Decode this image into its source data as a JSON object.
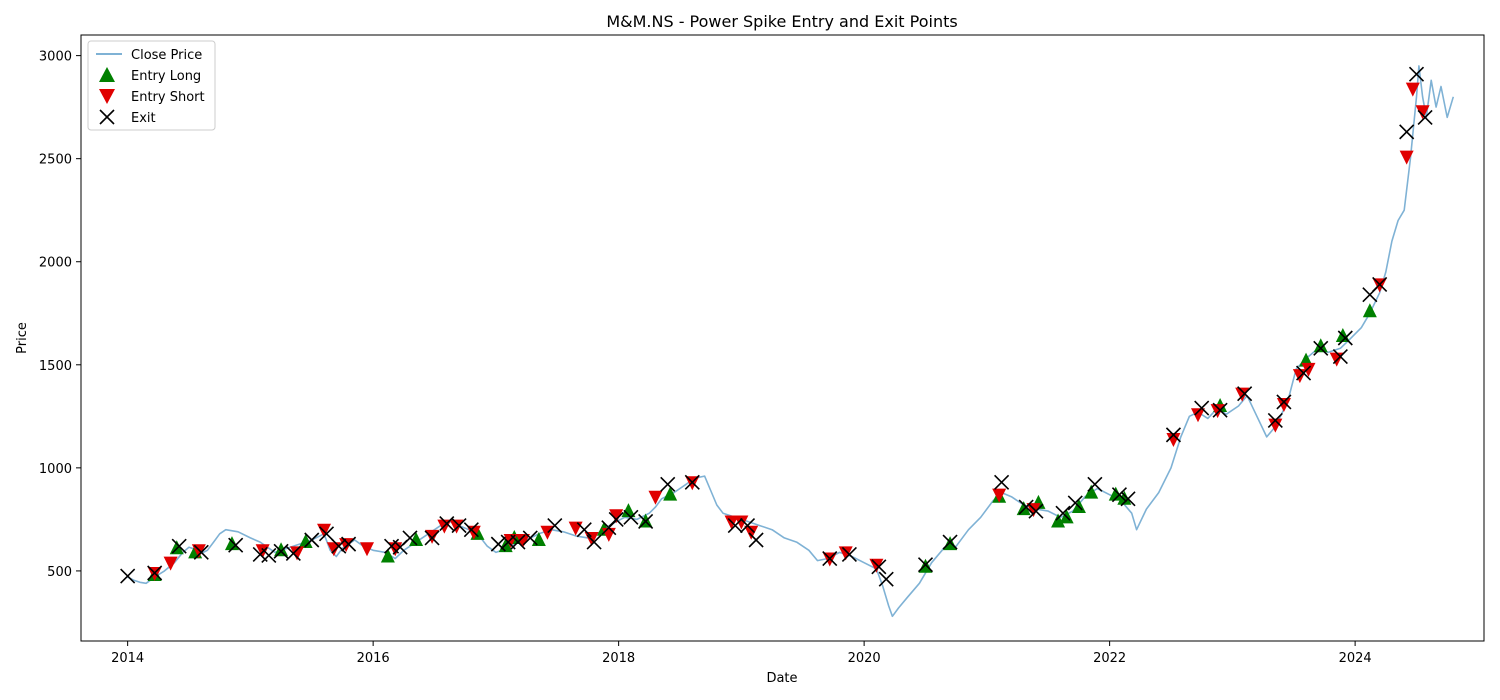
{
  "chart_data": {
    "type": "line",
    "title": "M&M.NS - Power Spike Entry and Exit Points",
    "xlabel": "Date",
    "ylabel": "Price",
    "xlim": [
      2013.62,
      2025.05
    ],
    "ylim": [
      160,
      3100
    ],
    "x_ticks": [
      2014,
      2016,
      2018,
      2020,
      2022,
      2024
    ],
    "y_ticks": [
      500,
      1000,
      1500,
      2000,
      2500,
      3000
    ],
    "legend_position": "top-left",
    "grid": false,
    "colors": {
      "close_price": "#7fb2d5",
      "entry_long": "#008000",
      "entry_short": "#e00000",
      "exit": "#000000"
    },
    "legend": [
      {
        "key": "close",
        "label": "Close Price"
      },
      {
        "key": "long",
        "label": "Entry Long"
      },
      {
        "key": "short",
        "label": "Entry Short"
      },
      {
        "key": "exit",
        "label": "Exit"
      }
    ],
    "series": [
      {
        "name": "Close Price",
        "points": [
          [
            2014.0,
            470
          ],
          [
            2014.05,
            455
          ],
          [
            2014.1,
            445
          ],
          [
            2014.15,
            440
          ],
          [
            2014.22,
            470
          ],
          [
            2014.3,
            500
          ],
          [
            2014.38,
            540
          ],
          [
            2014.45,
            590
          ],
          [
            2014.5,
            615
          ],
          [
            2014.55,
            605
          ],
          [
            2014.6,
            585
          ],
          [
            2014.65,
            600
          ],
          [
            2014.7,
            640
          ],
          [
            2014.75,
            680
          ],
          [
            2014.8,
            700
          ],
          [
            2014.9,
            690
          ],
          [
            2015.0,
            660
          ],
          [
            2015.08,
            640
          ],
          [
            2015.15,
            610
          ],
          [
            2015.2,
            590
          ],
          [
            2015.3,
            610
          ],
          [
            2015.4,
            630
          ],
          [
            2015.5,
            650
          ],
          [
            2015.6,
            680
          ],
          [
            2015.65,
            600
          ],
          [
            2015.7,
            570
          ],
          [
            2015.75,
            610
          ],
          [
            2015.85,
            650
          ],
          [
            2015.92,
            620
          ],
          [
            2016.0,
            600
          ],
          [
            2016.1,
            590
          ],
          [
            2016.18,
            560
          ],
          [
            2016.25,
            600
          ],
          [
            2016.35,
            640
          ],
          [
            2016.45,
            680
          ],
          [
            2016.55,
            720
          ],
          [
            2016.62,
            740
          ],
          [
            2016.7,
            720
          ],
          [
            2016.78,
            700
          ],
          [
            2016.85,
            680
          ],
          [
            2016.93,
            620
          ],
          [
            2017.0,
            590
          ],
          [
            2017.05,
            600
          ],
          [
            2017.15,
            630
          ],
          [
            2017.25,
            650
          ],
          [
            2017.35,
            680
          ],
          [
            2017.45,
            700
          ],
          [
            2017.55,
            690
          ],
          [
            2017.65,
            670
          ],
          [
            2017.75,
            660
          ],
          [
            2017.85,
            690
          ],
          [
            2017.95,
            730
          ],
          [
            2018.05,
            760
          ],
          [
            2018.15,
            750
          ],
          [
            2018.25,
            780
          ],
          [
            2018.3,
            810
          ],
          [
            2018.35,
            850
          ],
          [
            2018.45,
            880
          ],
          [
            2018.55,
            920
          ],
          [
            2018.62,
            950
          ],
          [
            2018.7,
            960
          ],
          [
            2018.75,
            890
          ],
          [
            2018.8,
            820
          ],
          [
            2018.85,
            780
          ],
          [
            2018.95,
            760
          ],
          [
            2019.05,
            740
          ],
          [
            2019.15,
            720
          ],
          [
            2019.25,
            700
          ],
          [
            2019.35,
            660
          ],
          [
            2019.45,
            640
          ],
          [
            2019.55,
            600
          ],
          [
            2019.62,
            550
          ],
          [
            2019.7,
            560
          ],
          [
            2019.8,
            590
          ],
          [
            2019.9,
            570
          ],
          [
            2020.0,
            540
          ],
          [
            2020.1,
            510
          ],
          [
            2020.15,
            430
          ],
          [
            2020.2,
            330
          ],
          [
            2020.23,
            280
          ],
          [
            2020.28,
            320
          ],
          [
            2020.35,
            370
          ],
          [
            2020.45,
            440
          ],
          [
            2020.55,
            540
          ],
          [
            2020.65,
            610
          ],
          [
            2020.75,
            620
          ],
          [
            2020.85,
            700
          ],
          [
            2020.95,
            760
          ],
          [
            2021.05,
            840
          ],
          [
            2021.12,
            880
          ],
          [
            2021.2,
            860
          ],
          [
            2021.3,
            820
          ],
          [
            2021.4,
            800
          ],
          [
            2021.5,
            790
          ],
          [
            2021.6,
            760
          ],
          [
            2021.7,
            790
          ],
          [
            2021.8,
            860
          ],
          [
            2021.9,
            900
          ],
          [
            2022.0,
            870
          ],
          [
            2022.08,
            850
          ],
          [
            2022.18,
            780
          ],
          [
            2022.22,
            700
          ],
          [
            2022.3,
            800
          ],
          [
            2022.4,
            880
          ],
          [
            2022.5,
            1000
          ],
          [
            2022.58,
            1150
          ],
          [
            2022.65,
            1250
          ],
          [
            2022.72,
            1270
          ],
          [
            2022.8,
            1240
          ],
          [
            2022.88,
            1290
          ],
          [
            2022.95,
            1260
          ],
          [
            2023.05,
            1300
          ],
          [
            2023.12,
            1350
          ],
          [
            2023.2,
            1250
          ],
          [
            2023.28,
            1150
          ],
          [
            2023.35,
            1200
          ],
          [
            2023.45,
            1320
          ],
          [
            2023.52,
            1480
          ],
          [
            2023.6,
            1530
          ],
          [
            2023.7,
            1580
          ],
          [
            2023.78,
            1560
          ],
          [
            2023.88,
            1580
          ],
          [
            2023.95,
            1620
          ],
          [
            2024.05,
            1680
          ],
          [
            2024.12,
            1750
          ],
          [
            2024.2,
            1850
          ],
          [
            2024.25,
            1950
          ],
          [
            2024.3,
            2100
          ],
          [
            2024.35,
            2200
          ],
          [
            2024.4,
            2250
          ],
          [
            2024.45,
            2500
          ],
          [
            2024.5,
            2800
          ],
          [
            2024.52,
            2950
          ],
          [
            2024.55,
            2800
          ],
          [
            2024.58,
            2700
          ],
          [
            2024.62,
            2880
          ],
          [
            2024.66,
            2750
          ],
          [
            2024.7,
            2850
          ],
          [
            2024.75,
            2700
          ],
          [
            2024.8,
            2800
          ]
        ]
      },
      {
        "name": "Entry Long",
        "points": [
          [
            2014.22,
            480
          ],
          [
            2014.4,
            610
          ],
          [
            2014.55,
            590
          ],
          [
            2014.85,
            630
          ],
          [
            2015.25,
            600
          ],
          [
            2015.45,
            640
          ],
          [
            2016.12,
            570
          ],
          [
            2016.35,
            650
          ],
          [
            2016.85,
            680
          ],
          [
            2017.08,
            620
          ],
          [
            2017.15,
            660
          ],
          [
            2017.35,
            650
          ],
          [
            2017.88,
            700
          ],
          [
            2018.08,
            790
          ],
          [
            2018.22,
            740
          ],
          [
            2018.42,
            870
          ],
          [
            2020.5,
            520
          ],
          [
            2020.7,
            630
          ],
          [
            2021.1,
            860
          ],
          [
            2021.3,
            800
          ],
          [
            2021.42,
            830
          ],
          [
            2021.58,
            740
          ],
          [
            2021.65,
            760
          ],
          [
            2021.75,
            810
          ],
          [
            2021.85,
            880
          ],
          [
            2022.05,
            870
          ],
          [
            2022.12,
            850
          ],
          [
            2022.9,
            1300
          ],
          [
            2023.6,
            1520
          ],
          [
            2023.72,
            1590
          ],
          [
            2023.9,
            1640
          ],
          [
            2024.12,
            1760
          ]
        ]
      },
      {
        "name": "Entry Short",
        "points": [
          [
            2014.22,
            490
          ],
          [
            2014.35,
            540
          ],
          [
            2014.58,
            600
          ],
          [
            2015.1,
            600
          ],
          [
            2015.38,
            590
          ],
          [
            2015.6,
            700
          ],
          [
            2015.68,
            610
          ],
          [
            2015.78,
            630
          ],
          [
            2015.95,
            610
          ],
          [
            2016.18,
            610
          ],
          [
            2016.48,
            670
          ],
          [
            2016.58,
            720
          ],
          [
            2016.68,
            720
          ],
          [
            2016.82,
            690
          ],
          [
            2017.12,
            650
          ],
          [
            2017.22,
            650
          ],
          [
            2017.42,
            690
          ],
          [
            2017.65,
            710
          ],
          [
            2017.78,
            660
          ],
          [
            2017.92,
            680
          ],
          [
            2017.98,
            770
          ],
          [
            2018.3,
            860
          ],
          [
            2018.6,
            930
          ],
          [
            2018.92,
            740
          ],
          [
            2019.0,
            740
          ],
          [
            2019.08,
            690
          ],
          [
            2019.72,
            560
          ],
          [
            2019.85,
            590
          ],
          [
            2020.1,
            530
          ],
          [
            2021.1,
            870
          ],
          [
            2021.38,
            800
          ],
          [
            2022.52,
            1140
          ],
          [
            2022.72,
            1260
          ],
          [
            2022.88,
            1280
          ],
          [
            2023.08,
            1360
          ],
          [
            2023.35,
            1210
          ],
          [
            2023.42,
            1310
          ],
          [
            2023.55,
            1450
          ],
          [
            2023.62,
            1480
          ],
          [
            2023.85,
            1530
          ],
          [
            2024.2,
            1890
          ],
          [
            2024.42,
            2510
          ],
          [
            2024.47,
            2840
          ],
          [
            2024.55,
            2730
          ]
        ]
      },
      {
        "name": "Exit",
        "points": [
          [
            2014.0,
            475
          ],
          [
            2014.22,
            490
          ],
          [
            2014.42,
            620
          ],
          [
            2014.6,
            590
          ],
          [
            2014.88,
            625
          ],
          [
            2015.08,
            580
          ],
          [
            2015.15,
            575
          ],
          [
            2015.25,
            595
          ],
          [
            2015.35,
            585
          ],
          [
            2015.5,
            650
          ],
          [
            2015.62,
            680
          ],
          [
            2015.72,
            620
          ],
          [
            2015.8,
            630
          ],
          [
            2016.15,
            620
          ],
          [
            2016.22,
            615
          ],
          [
            2016.3,
            660
          ],
          [
            2016.48,
            660
          ],
          [
            2016.6,
            730
          ],
          [
            2016.7,
            720
          ],
          [
            2016.8,
            700
          ],
          [
            2017.02,
            630
          ],
          [
            2017.1,
            640
          ],
          [
            2017.18,
            640
          ],
          [
            2017.28,
            660
          ],
          [
            2017.48,
            720
          ],
          [
            2017.72,
            700
          ],
          [
            2017.8,
            640
          ],
          [
            2017.92,
            710
          ],
          [
            2017.98,
            750
          ],
          [
            2018.1,
            760
          ],
          [
            2018.22,
            740
          ],
          [
            2018.4,
            920
          ],
          [
            2018.6,
            930
          ],
          [
            2018.95,
            720
          ],
          [
            2019.05,
            720
          ],
          [
            2019.12,
            650
          ],
          [
            2019.72,
            560
          ],
          [
            2019.88,
            580
          ],
          [
            2020.12,
            520
          ],
          [
            2020.18,
            460
          ],
          [
            2020.5,
            530
          ],
          [
            2020.7,
            640
          ],
          [
            2021.12,
            930
          ],
          [
            2021.32,
            810
          ],
          [
            2021.4,
            790
          ],
          [
            2021.62,
            780
          ],
          [
            2021.72,
            830
          ],
          [
            2021.88,
            920
          ],
          [
            2022.08,
            870
          ],
          [
            2022.15,
            850
          ],
          [
            2022.52,
            1160
          ],
          [
            2022.75,
            1290
          ],
          [
            2022.9,
            1280
          ],
          [
            2023.1,
            1360
          ],
          [
            2023.35,
            1230
          ],
          [
            2023.42,
            1320
          ],
          [
            2023.58,
            1460
          ],
          [
            2023.72,
            1580
          ],
          [
            2023.88,
            1540
          ],
          [
            2023.92,
            1630
          ],
          [
            2024.12,
            1840
          ],
          [
            2024.2,
            1890
          ],
          [
            2024.42,
            2630
          ],
          [
            2024.5,
            2910
          ],
          [
            2024.57,
            2700
          ]
        ]
      }
    ]
  }
}
